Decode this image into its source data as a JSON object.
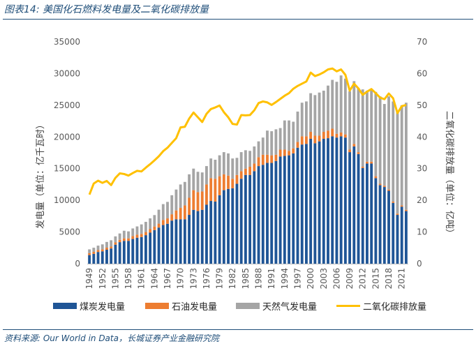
{
  "header": {
    "title": "图表14:  美国化石燃料发电量及二氧化碳排放量"
  },
  "footer": {
    "source": "资料来源:  Our World in Data，长城证券产业金融研究院"
  },
  "colors": {
    "coal": "#1f5596",
    "oil": "#ed7d31",
    "gas": "#a5a5a5",
    "co2": "#ffc000",
    "title": "#1f4e79"
  },
  "chart_data": {
    "type": "bar",
    "stacked": true,
    "title": "美国化石燃料发电量及二氧化碳排放量",
    "xlabel": "",
    "ylabel": "发电量（单位：亿千瓦时）",
    "y2label": "二氧化碳排放量（单位：亿吨）",
    "ylim": [
      0,
      35000
    ],
    "y2lim": [
      0,
      70
    ],
    "yticks": [
      "0",
      "5000",
      "10000",
      "15000",
      "20000",
      "25000",
      "30000",
      "35000"
    ],
    "y2ticks": [
      "0",
      "10",
      "20",
      "30",
      "40",
      "50",
      "60",
      "70"
    ],
    "grid": false,
    "legend_position": "bottom",
    "xtick_labels": [
      "1949",
      "1952",
      "1955",
      "1958",
      "1961",
      "1964",
      "1967",
      "1970",
      "1973",
      "1976",
      "1979",
      "1982",
      "1985",
      "1988",
      "1991",
      "1994",
      "1997",
      "2000",
      "2003",
      "2006",
      "2009",
      "2012",
      "2015",
      "2018",
      "2021"
    ],
    "categories": [
      1949,
      1950,
      1951,
      1952,
      1953,
      1954,
      1955,
      1956,
      1957,
      1958,
      1959,
      1960,
      1961,
      1962,
      1963,
      1964,
      1965,
      1966,
      1967,
      1968,
      1969,
      1970,
      1971,
      1972,
      1973,
      1974,
      1975,
      1976,
      1977,
      1978,
      1979,
      1980,
      1981,
      1982,
      1983,
      1984,
      1985,
      1986,
      1987,
      1988,
      1989,
      1990,
      1991,
      1992,
      1993,
      1994,
      1995,
      1996,
      1997,
      1998,
      1999,
      2000,
      2001,
      2002,
      2003,
      2004,
      2005,
      2006,
      2007,
      2008,
      2009,
      2010,
      2011,
      2012,
      2013,
      2014,
      2015,
      2016,
      2017,
      2018,
      2019,
      2020,
      2021,
      2022
    ],
    "series": [
      {
        "name": "煤炭发电量",
        "kind": "bar",
        "axis": "left",
        "values": [
          1360,
          1550,
          1850,
          1950,
          2200,
          2400,
          3000,
          3400,
          3600,
          3600,
          3900,
          4100,
          4200,
          4500,
          4900,
          5300,
          5700,
          6100,
          6300,
          6800,
          7000,
          7000,
          7000,
          7700,
          8500,
          8300,
          8500,
          9300,
          9900,
          9800,
          10800,
          11600,
          11800,
          11900,
          12600,
          13400,
          14000,
          14000,
          14600,
          15400,
          15600,
          15900,
          15900,
          16200,
          16900,
          17000,
          17100,
          17400,
          18300,
          18800,
          18900,
          19700,
          19000,
          19300,
          19700,
          19800,
          20100,
          19900,
          20100,
          19900,
          17600,
          18500,
          17300,
          15100,
          15800,
          15800,
          13500,
          12400,
          12100,
          11500,
          9600,
          7700,
          9000,
          8300
        ]
      },
      {
        "name": "石油发电量",
        "kind": "bar",
        "axis": "left",
        "values": [
          300,
          320,
          300,
          300,
          330,
          300,
          360,
          370,
          400,
          400,
          460,
          480,
          500,
          500,
          550,
          570,
          620,
          800,
          850,
          1000,
          1400,
          1800,
          2200,
          2700,
          3100,
          3000,
          2900,
          3200,
          3600,
          3600,
          3000,
          2500,
          2100,
          1500,
          1400,
          1200,
          1000,
          1300,
          1200,
          1400,
          1600,
          1300,
          1200,
          1000,
          1100,
          1000,
          700,
          800,
          900,
          1300,
          1200,
          1100,
          1200,
          900,
          1100,
          1200,
          1200,
          600,
          600,
          500,
          400,
          400,
          300,
          200,
          300,
          300,
          300,
          200,
          200,
          200,
          200,
          200,
          200,
          200
        ]
      },
      {
        "name": "天然气发电量",
        "kind": "bar",
        "axis": "left",
        "values": [
          600,
          650,
          700,
          800,
          900,
          1000,
          950,
          1000,
          1200,
          1100,
          1200,
          1300,
          1500,
          1600,
          1700,
          1800,
          2200,
          2500,
          2600,
          3000,
          3300,
          3700,
          3700,
          3700,
          3400,
          3200,
          3000,
          2900,
          3100,
          3000,
          3300,
          3500,
          3500,
          3200,
          2700,
          3000,
          2900,
          2500,
          2700,
          2500,
          2700,
          3800,
          3800,
          4000,
          3400,
          4600,
          4800,
          4200,
          4800,
          5300,
          5500,
          6100,
          6400,
          6800,
          6500,
          7100,
          7700,
          8200,
          9000,
          8800,
          9200,
          9900,
          10100,
          12200,
          11200,
          11300,
          13300,
          13800,
          12900,
          14700,
          15800,
          16200,
          15800,
          16900
        ]
      },
      {
        "name": "二氧化碳排放量",
        "kind": "line",
        "axis": "right",
        "values": [
          21.8,
          25.3,
          26.2,
          25.5,
          26.1,
          24.8,
          27.1,
          28.5,
          28.3,
          27.8,
          28.6,
          29.3,
          29.1,
          30.3,
          31.4,
          32.6,
          33.9,
          35.5,
          36.6,
          38.1,
          39.6,
          43.0,
          43.2,
          45.8,
          47.7,
          46.2,
          44.7,
          47.3,
          48.8,
          49.3,
          49.9,
          47.8,
          46.2,
          44.1,
          43.9,
          46.9,
          46.8,
          46.9,
          48.4,
          50.7,
          51.2,
          50.9,
          50.1,
          51.0,
          52.0,
          53.0,
          53.8,
          55.2,
          56.1,
          56.8,
          57.5,
          60.3,
          59.2,
          59.7,
          60.4,
          61.3,
          61.6,
          60.7,
          61.3,
          59.6,
          54.6,
          56.8,
          55.3,
          53.3,
          54.3,
          55.1,
          53.8,
          52.4,
          51.9,
          53.7,
          52.2,
          47.5,
          49.7,
          50.1
        ]
      }
    ]
  },
  "legend": {
    "coal": "煤炭发电量",
    "oil": "石油发电量",
    "gas": "天然气发电量",
    "co2": "二氧化碳排放量"
  },
  "axes": {
    "left_title": "发电量（单位：亿千瓦时）",
    "right_title": "二氧化碳排放量（单位：亿吨）"
  }
}
